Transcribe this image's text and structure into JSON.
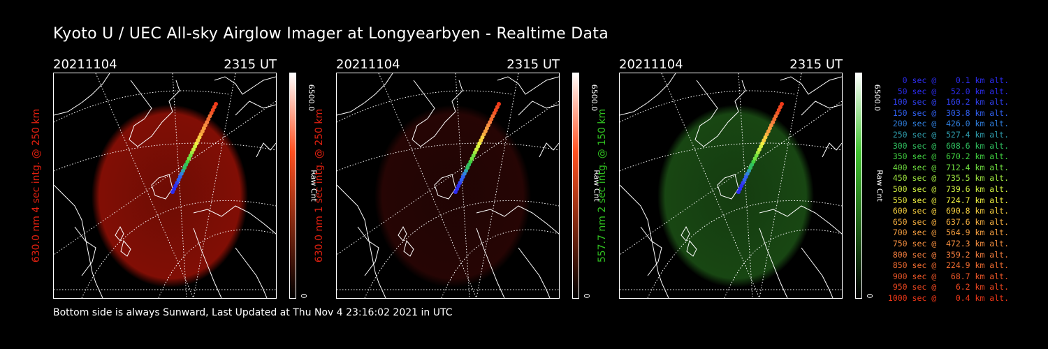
{
  "title": "Kyoto U / UEC All-sky Airglow Imager at Longyearbyen - Realtime Data",
  "footer": "Bottom side is always Sunward, Last Updated at Thu Nov  4 23:16:02 2021 in UTC",
  "panels": [
    {
      "date": "20211104",
      "time": "2315 UT",
      "ylabel": "630.0 nm 4 sec intg. @ 250 km",
      "label_color": "#e02010",
      "glow_color": "#b31407",
      "glow_opacity": 0.72,
      "cbar_top": "#ffffff",
      "cbar_mid": "#ff5020",
      "cbar_bottom": "#000000",
      "cbar_max": "6500.0",
      "cbar_min": "0",
      "cbar_unit": "Raw Cnt"
    },
    {
      "date": "20211104",
      "time": "2315 UT",
      "ylabel": "630.0 nm 1 sec intg. @ 250 km",
      "label_color": "#e02010",
      "glow_color": "#3a0806",
      "glow_opacity": 0.65,
      "cbar_top": "#ffffff",
      "cbar_mid": "#ff5020",
      "cbar_bottom": "#000000",
      "cbar_max": "6500.0",
      "cbar_min": "0",
      "cbar_unit": "Raw Cnt"
    },
    {
      "date": "20211104",
      "time": "2315 UT",
      "ylabel": "557.7 nm 2 sec intg. @ 150 km",
      "label_color": "#30c020",
      "glow_color": "#1f5a18",
      "glow_opacity": 0.78,
      "cbar_top": "#ffffff",
      "cbar_mid": "#40c030",
      "cbar_bottom": "#000000",
      "cbar_max": "6500.0",
      "cbar_min": "0",
      "cbar_unit": "Raw Cnt"
    }
  ],
  "legend": [
    {
      "text": "   0 sec @    0.1 km alt.",
      "color": "#2c2cf0"
    },
    {
      "text": "  50 sec @   52.0 km alt.",
      "color": "#2c2cf0"
    },
    {
      "text": " 100 sec @  160.2 km alt.",
      "color": "#3040f0"
    },
    {
      "text": " 150 sec @  303.8 km alt.",
      "color": "#3060f0"
    },
    {
      "text": " 200 sec @  426.0 km alt.",
      "color": "#3080e0"
    },
    {
      "text": " 250 sec @  527.4 km alt.",
      "color": "#30a0b0"
    },
    {
      "text": " 300 sec @  608.6 km alt.",
      "color": "#30c060"
    },
    {
      "text": " 350 sec @  670.2 km alt.",
      "color": "#40d040"
    },
    {
      "text": " 400 sec @  712.4 km alt.",
      "color": "#70e040"
    },
    {
      "text": " 450 sec @  735.5 km alt.",
      "color": "#a0e840"
    },
    {
      "text": " 500 sec @  739.6 km alt.",
      "color": "#d0f040"
    },
    {
      "text": " 550 sec @  724.7 km alt.",
      "color": "#f0f040"
    },
    {
      "text": " 600 sec @  690.8 km alt.",
      "color": "#f8d040"
    },
    {
      "text": " 650 sec @  637.6 km alt.",
      "color": "#f8b040"
    },
    {
      "text": " 700 sec @  564.9 km alt.",
      "color": "#f8a040"
    },
    {
      "text": " 750 sec @  472.3 km alt.",
      "color": "#f89040"
    },
    {
      "text": " 800 sec @  359.2 km alt.",
      "color": "#f88040"
    },
    {
      "text": " 850 sec @  224.9 km alt.",
      "color": "#f06c30"
    },
    {
      "text": " 900 sec @   68.7 km alt.",
      "color": "#f05828"
    },
    {
      "text": " 950 sec @    6.2 km alt.",
      "color": "#f04820"
    },
    {
      "text": "1000 sec @    0.4 km alt.",
      "color": "#f03818"
    }
  ]
}
